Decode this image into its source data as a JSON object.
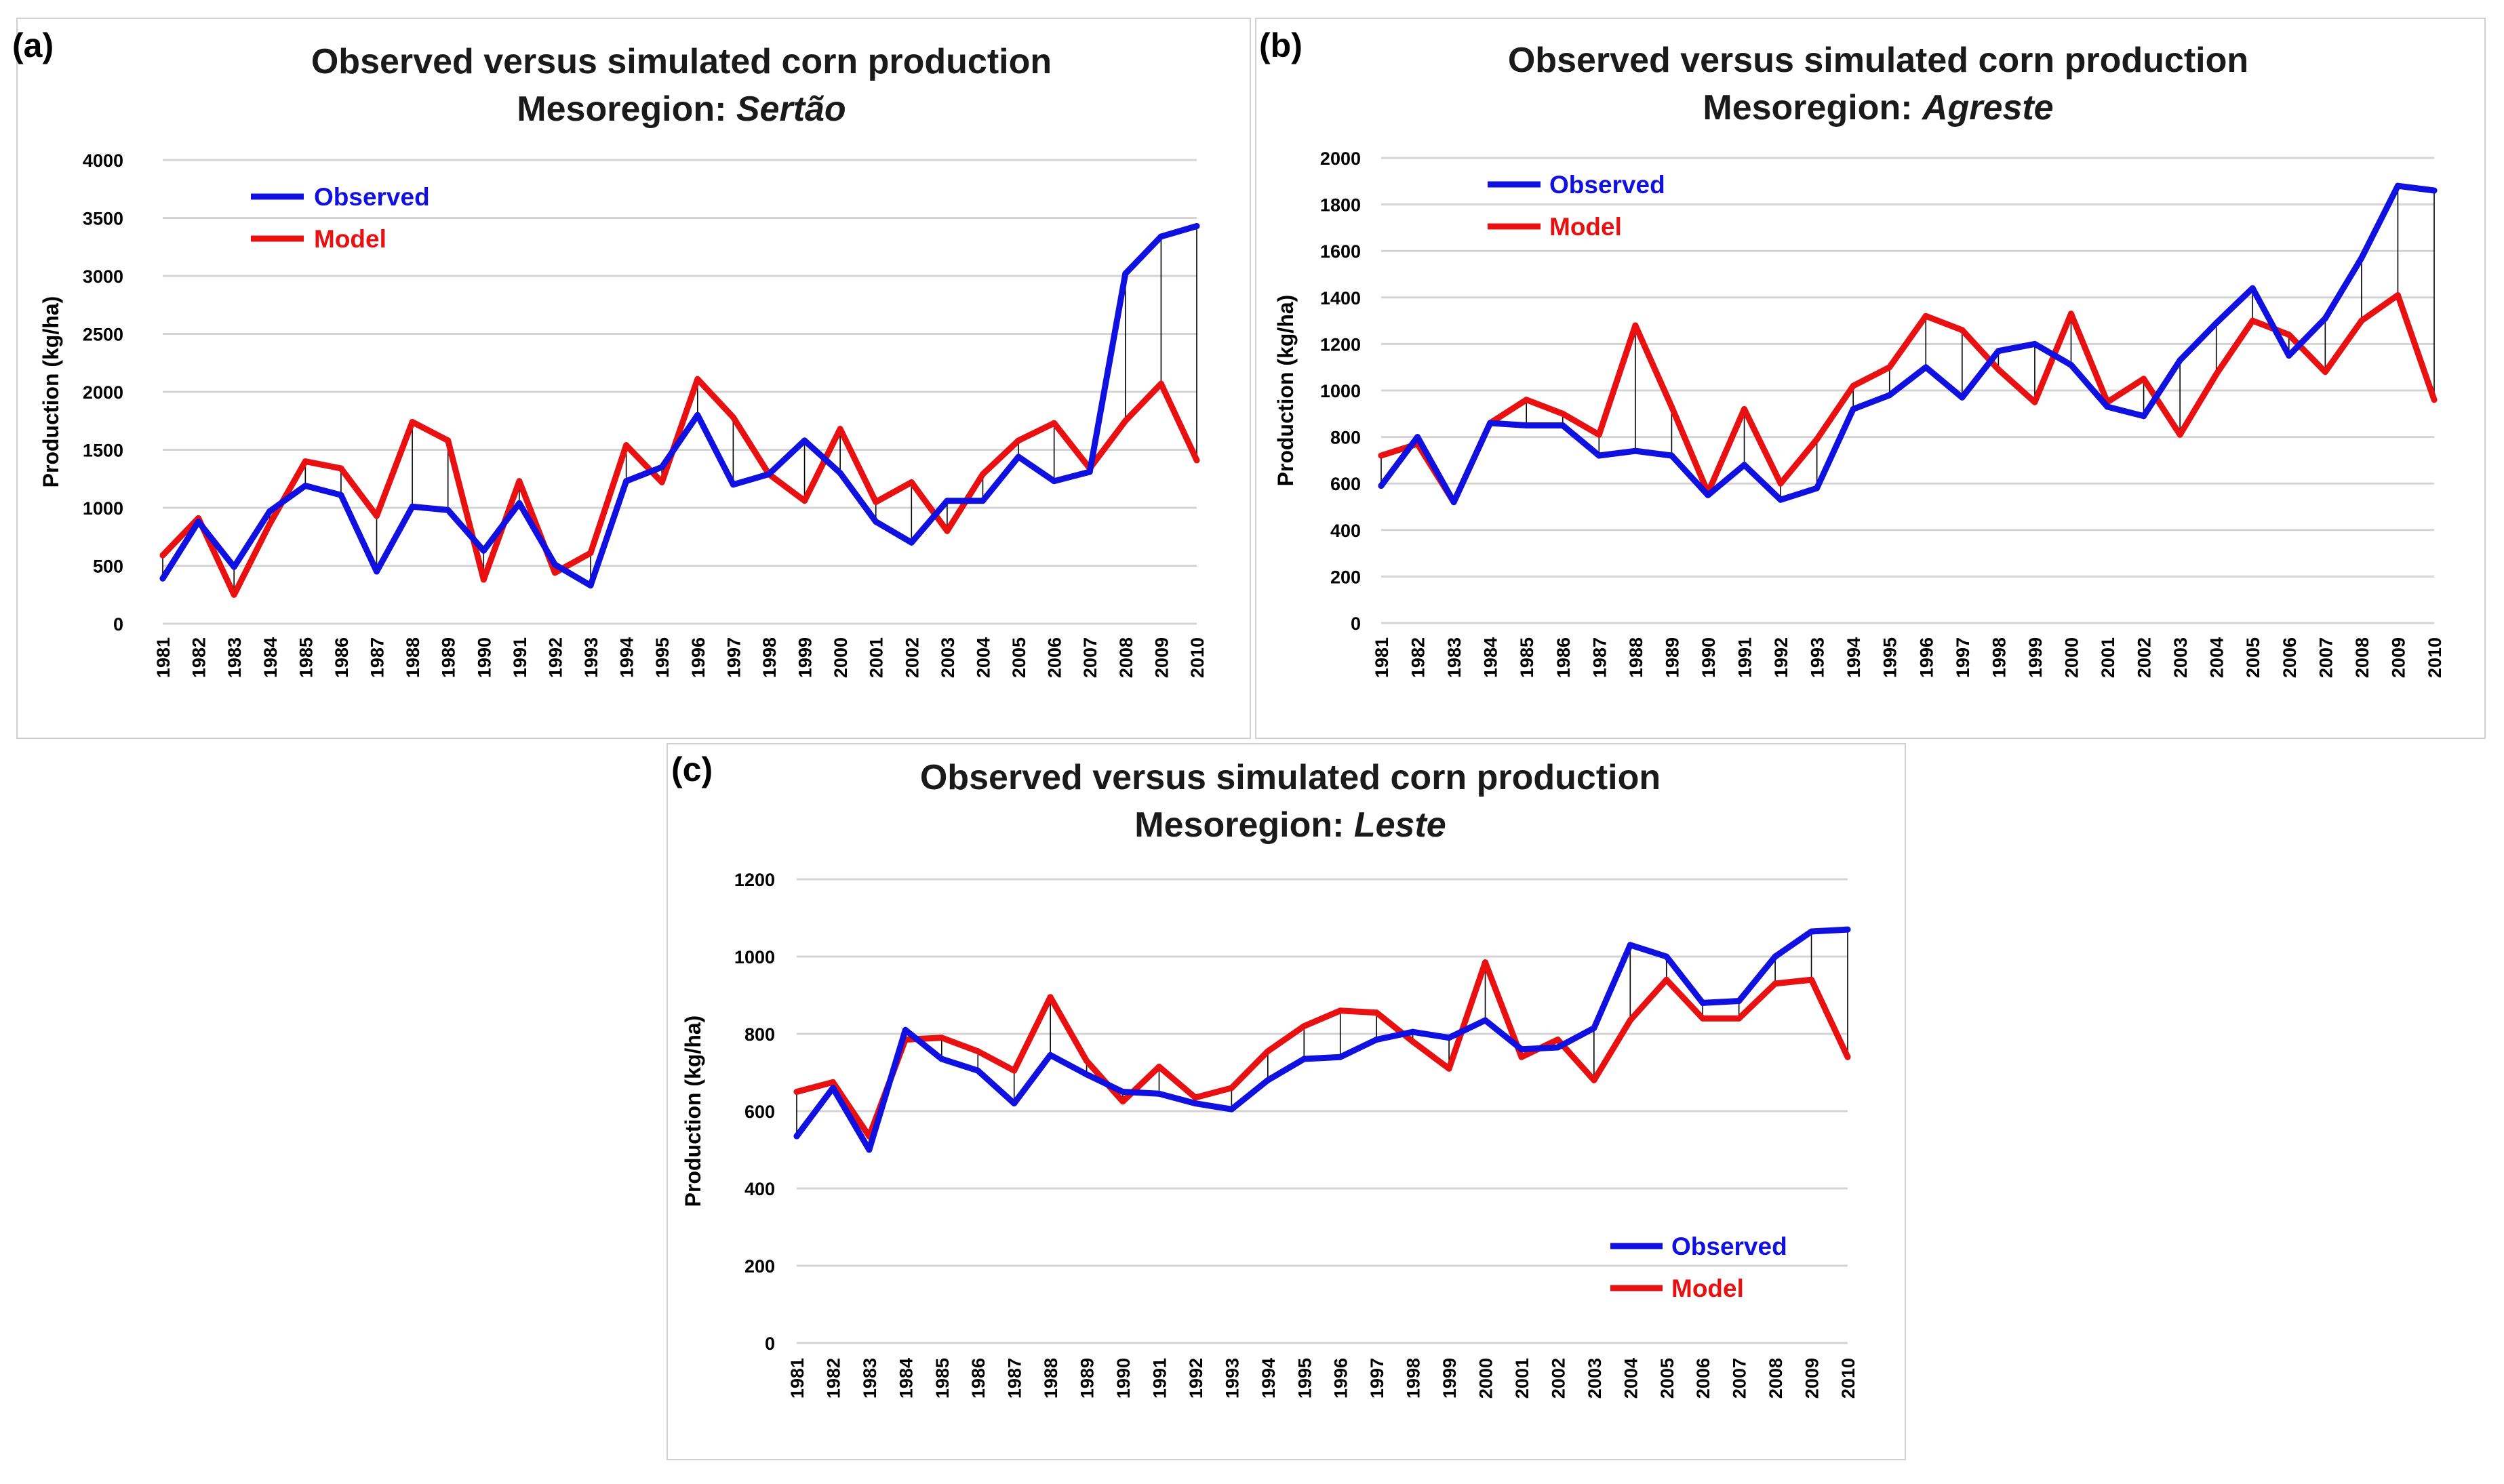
{
  "figure": {
    "colors": {
      "observed": "#1010e0",
      "model": "#e81010",
      "grid": "#d4d4d4",
      "drop": "#000000"
    }
  },
  "chart_data": [
    {
      "panel_label": "(a)",
      "type": "line",
      "title_line1": "Observed versus simulated corn production",
      "title_prefix": "Mesoregion: ",
      "title_region": "Sertão",
      "ylabel": "Production (kg/ha)",
      "ylim": [
        0,
        4000
      ],
      "ytick_step": 500,
      "yticks": [
        "0",
        "500",
        "1000",
        "1500",
        "2000",
        "2500",
        "3000",
        "3500",
        "4000"
      ],
      "legend_position": "top-left",
      "categories": [
        "1981",
        "1982",
        "1983",
        "1984",
        "1985",
        "1986",
        "1987",
        "1988",
        "1989",
        "1990",
        "1991",
        "1992",
        "1993",
        "1994",
        "1995",
        "1996",
        "1997",
        "1998",
        "1999",
        "2000",
        "2001",
        "2002",
        "2003",
        "2004",
        "2005",
        "2006",
        "2007",
        "2008",
        "2009",
        "2010"
      ],
      "series": [
        {
          "name": "Observed",
          "values": [
            390,
            880,
            490,
            970,
            1190,
            1110,
            450,
            1010,
            980,
            630,
            1040,
            510,
            330,
            1230,
            1350,
            1800,
            1200,
            1290,
            1580,
            1300,
            880,
            700,
            1060,
            1060,
            1440,
            1230,
            1310,
            3020,
            3340,
            3430
          ]
        },
        {
          "name": "Model",
          "values": [
            590,
            910,
            250,
            860,
            1400,
            1340,
            930,
            1740,
            1580,
            380,
            1230,
            440,
            610,
            1540,
            1220,
            2110,
            1780,
            1290,
            1060,
            1680,
            1050,
            1220,
            800,
            1290,
            1580,
            1730,
            1340,
            1750,
            2070,
            1410
          ]
        }
      ]
    },
    {
      "panel_label": "(b)",
      "type": "line",
      "title_line1": "Observed versus simulated corn production",
      "title_prefix": "Mesoregion: ",
      "title_region": "Agreste",
      "ylabel": "Production (kg/ha)",
      "ylim": [
        0,
        2000
      ],
      "ytick_step": 200,
      "yticks": [
        "0",
        "200",
        "400",
        "600",
        "800",
        "1000",
        "1200",
        "1400",
        "1600",
        "1800",
        "2000"
      ],
      "legend_position": "top-left",
      "categories": [
        "1981",
        "1982",
        "1983",
        "1984",
        "1985",
        "1986",
        "1987",
        "1988",
        "1989",
        "1990",
        "1991",
        "1992",
        "1993",
        "1994",
        "1995",
        "1996",
        "1997",
        "1998",
        "1999",
        "2000",
        "2001",
        "2002",
        "2003",
        "2004",
        "2005",
        "2006",
        "2007",
        "2008",
        "2009",
        "2010"
      ],
      "series": [
        {
          "name": "Observed",
          "values": [
            590,
            800,
            520,
            860,
            850,
            850,
            720,
            740,
            720,
            550,
            680,
            530,
            580,
            920,
            980,
            1100,
            970,
            1170,
            1200,
            1110,
            930,
            890,
            1130,
            1290,
            1440,
            1150,
            1310,
            1570,
            1880,
            1860
          ]
        },
        {
          "name": "Model",
          "values": [
            720,
            770,
            520,
            860,
            960,
            900,
            810,
            1280,
            930,
            560,
            920,
            600,
            790,
            1020,
            1100,
            1320,
            1260,
            1090,
            950,
            1330,
            950,
            1050,
            810,
            1070,
            1300,
            1240,
            1080,
            1300,
            1410,
            960
          ]
        }
      ]
    },
    {
      "panel_label": "(c)",
      "type": "line",
      "title_line1": "Observed versus simulated corn production",
      "title_prefix": "Mesoregion: ",
      "title_region": "Leste",
      "ylabel": "Production (kg/ha)",
      "ylim": [
        0,
        1200
      ],
      "ytick_step": 200,
      "yticks": [
        "0",
        "200",
        "400",
        "600",
        "800",
        "1000",
        "1200"
      ],
      "legend_position": "bottom-right",
      "categories": [
        "1981",
        "1982",
        "1983",
        "1984",
        "1985",
        "1986",
        "1987",
        "1988",
        "1989",
        "1990",
        "1991",
        "1992",
        "1993",
        "1994",
        "1995",
        "1996",
        "1997",
        "1998",
        "1999",
        "2000",
        "2001",
        "2002",
        "2003",
        "2004",
        "2005",
        "2006",
        "2007",
        "2008",
        "2009",
        "2010"
      ],
      "series": [
        {
          "name": "Observed",
          "values": [
            535,
            660,
            500,
            810,
            735,
            705,
            620,
            745,
            695,
            650,
            645,
            620,
            605,
            680,
            735,
            740,
            785,
            805,
            790,
            835,
            760,
            765,
            815,
            1030,
            1000,
            880,
            885,
            1000,
            1065,
            1070
          ]
        },
        {
          "name": "Model",
          "values": [
            650,
            675,
            535,
            785,
            790,
            755,
            705,
            895,
            730,
            625,
            715,
            635,
            660,
            755,
            820,
            860,
            855,
            780,
            710,
            985,
            740,
            785,
            680,
            835,
            940,
            840,
            840,
            930,
            940,
            740
          ]
        }
      ]
    }
  ]
}
